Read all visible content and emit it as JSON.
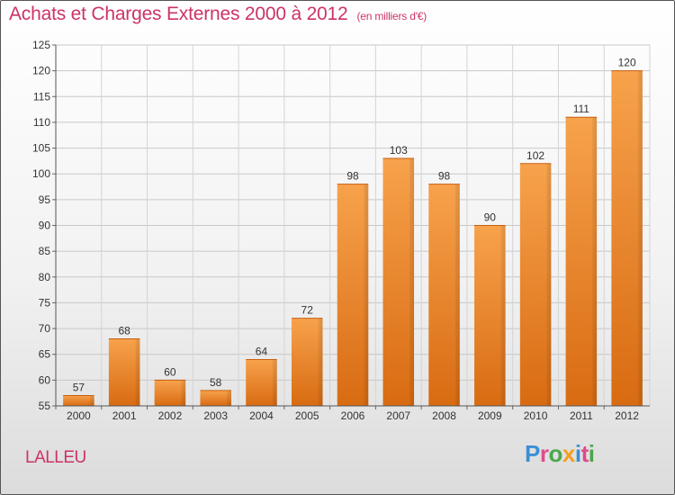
{
  "title": "Achats et Charges Externes 2000 à 2012",
  "unit": "(en milliers d'€)",
  "commune": "LALLEU",
  "logo_text": "Proxiti",
  "chart_data": {
    "type": "bar",
    "title": "Achats et Charges Externes 2000 à 2012",
    "subtitle": "(en milliers d'€)",
    "categories": [
      "2000",
      "2001",
      "2002",
      "2003",
      "2004",
      "2005",
      "2006",
      "2007",
      "2008",
      "2009",
      "2010",
      "2011",
      "2012"
    ],
    "values": [
      57,
      68,
      60,
      58,
      64,
      72,
      98,
      103,
      98,
      90,
      102,
      111,
      120
    ],
    "ylim": [
      55,
      125
    ],
    "yticks": [
      55,
      60,
      65,
      70,
      75,
      80,
      85,
      90,
      95,
      100,
      105,
      110,
      115,
      120,
      125
    ],
    "grid": true,
    "colors": {
      "bar_light": "#f7a04a",
      "bar_dark": "#d86b12",
      "title": "#cc3366"
    }
  }
}
